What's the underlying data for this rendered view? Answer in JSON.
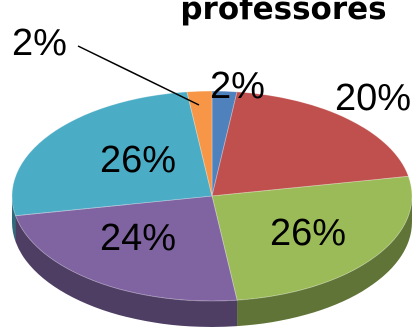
{
  "chart_data": {
    "type": "pie",
    "title": "professores",
    "slices": [
      {
        "value": 2,
        "label": "2%",
        "color": "#4F81BD"
      },
      {
        "value": 20,
        "label": "20%",
        "color": "#C0504D"
      },
      {
        "value": 26,
        "label": "26%",
        "color": "#9BBB59"
      },
      {
        "value": 24,
        "label": "24%",
        "color": "#8064A2"
      },
      {
        "value": 26,
        "label": "26%",
        "color": "#4BACC6"
      },
      {
        "value": 2,
        "label": "2%",
        "color": "#F79646"
      }
    ]
  }
}
